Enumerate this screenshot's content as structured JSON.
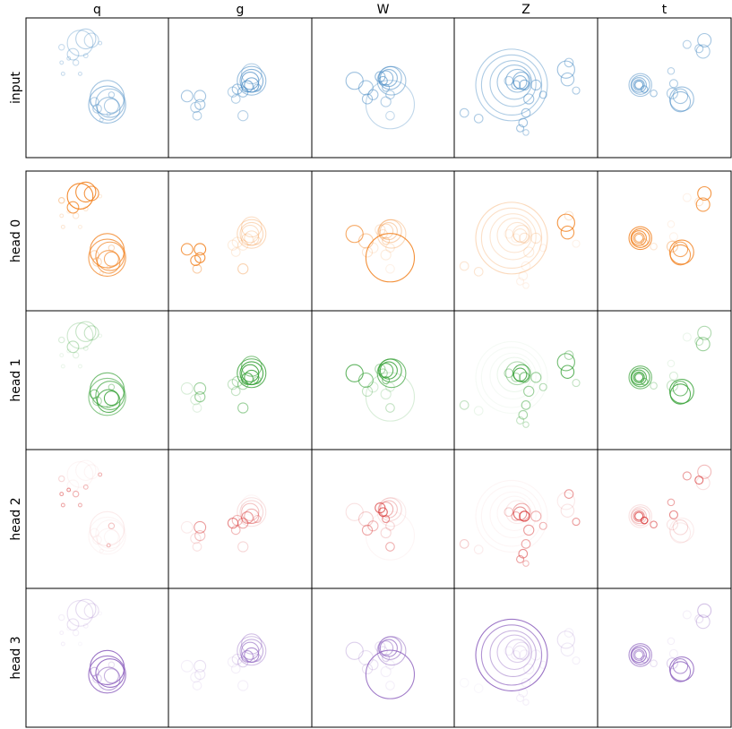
{
  "chart_data": {
    "type": "scatter",
    "columns": [
      "q",
      "g",
      "W",
      "Z",
      "t"
    ],
    "rows": [
      "input",
      "head 0",
      "head 1",
      "head 2",
      "head 3"
    ],
    "row_colors": {
      "input": "#4a8cc4",
      "head 0": "#f28424",
      "head 1": "#3ba33b",
      "head 2": "#d93b3b",
      "head 3": "#9065c0"
    },
    "panels": {
      "q": [
        {
          "x": 0.38,
          "y": 0.82,
          "r": 0.09,
          "w": [
            0.35,
            0.95,
            0.25,
            0.05,
            0.2
          ]
        },
        {
          "x": 0.42,
          "y": 0.85,
          "r": 0.07,
          "w": [
            0.4,
            0.9,
            0.3,
            0.05,
            0.25
          ]
        },
        {
          "x": 0.46,
          "y": 0.84,
          "r": 0.05,
          "w": [
            0.35,
            0.85,
            0.3,
            0.05,
            0.2
          ]
        },
        {
          "x": 0.33,
          "y": 0.74,
          "r": 0.04,
          "w": [
            0.35,
            0.8,
            0.35,
            0.05,
            0.2
          ]
        },
        {
          "x": 0.25,
          "y": 0.79,
          "r": 0.02,
          "w": [
            0.3,
            0.4,
            0.2,
            0.2,
            0.1
          ]
        },
        {
          "x": 0.35,
          "y": 0.68,
          "r": 0.02,
          "w": [
            0.3,
            0.2,
            0.15,
            0.4,
            0.1
          ]
        },
        {
          "x": 0.42,
          "y": 0.73,
          "r": 0.015,
          "w": [
            0.3,
            0.2,
            0.15,
            0.35,
            0.1
          ]
        },
        {
          "x": 0.25,
          "y": 0.68,
          "r": 0.012,
          "w": [
            0.3,
            0.2,
            0.1,
            0.5,
            0.1
          ]
        },
        {
          "x": 0.26,
          "y": 0.6,
          "r": 0.012,
          "w": [
            0.3,
            0.2,
            0.1,
            0.45,
            0.1
          ]
        },
        {
          "x": 0.3,
          "y": 0.71,
          "r": 0.012,
          "w": [
            0.3,
            0.15,
            0.1,
            0.55,
            0.05
          ]
        },
        {
          "x": 0.38,
          "y": 0.6,
          "r": 0.012,
          "w": [
            0.3,
            0.15,
            0.1,
            0.4,
            0.05
          ]
        },
        {
          "x": 0.52,
          "y": 0.82,
          "r": 0.012,
          "w": [
            0.3,
            0.15,
            0.1,
            0.4,
            0.05
          ]
        },
        {
          "x": 0.57,
          "y": 0.43,
          "r": 0.12,
          "w": [
            0.5,
            0.8,
            0.7,
            0.1,
            0.9
          ]
        },
        {
          "x": 0.57,
          "y": 0.38,
          "r": 0.13,
          "w": [
            0.55,
            0.75,
            0.6,
            0.05,
            0.85
          ]
        },
        {
          "x": 0.59,
          "y": 0.39,
          "r": 0.1,
          "w": [
            0.5,
            0.75,
            0.7,
            0.05,
            0.9
          ]
        },
        {
          "x": 0.58,
          "y": 0.35,
          "r": 0.08,
          "w": [
            0.5,
            0.7,
            0.8,
            0.05,
            0.6
          ]
        },
        {
          "x": 0.6,
          "y": 0.37,
          "r": 0.05,
          "w": [
            0.45,
            0.65,
            0.85,
            0.05,
            0.5
          ]
        },
        {
          "x": 0.48,
          "y": 0.4,
          "r": 0.03,
          "w": [
            0.4,
            0.3,
            0.6,
            0.05,
            0.4
          ]
        },
        {
          "x": 0.5,
          "y": 0.35,
          "r": 0.03,
          "w": [
            0.4,
            0.3,
            0.4,
            0.05,
            0.3
          ]
        },
        {
          "x": 0.6,
          "y": 0.45,
          "r": 0.02,
          "w": [
            0.4,
            0.3,
            0.4,
            0.3,
            0.2
          ]
        },
        {
          "x": 0.53,
          "y": 0.27,
          "r": 0.012,
          "w": [
            0.3,
            0.2,
            0.1,
            0.05,
            0.1
          ]
        },
        {
          "x": 0.58,
          "y": 0.31,
          "r": 0.012,
          "w": [
            0.3,
            0.2,
            0.2,
            0.35,
            0.1
          ]
        }
      ],
      "g": [
        {
          "x": 0.58,
          "y": 0.55,
          "r": 0.1,
          "w": [
            0.55,
            0.3,
            0.8,
            0.15,
            0.4
          ]
        },
        {
          "x": 0.58,
          "y": 0.55,
          "r": 0.08,
          "w": [
            0.65,
            0.3,
            0.9,
            0.2,
            0.5
          ]
        },
        {
          "x": 0.57,
          "y": 0.55,
          "r": 0.06,
          "w": [
            0.7,
            0.25,
            0.9,
            0.3,
            0.6
          ]
        },
        {
          "x": 0.58,
          "y": 0.52,
          "r": 0.05,
          "w": [
            0.75,
            0.25,
            0.85,
            0.4,
            0.7
          ]
        },
        {
          "x": 0.55,
          "y": 0.51,
          "r": 0.04,
          "w": [
            0.7,
            0.2,
            0.8,
            0.5,
            0.6
          ]
        },
        {
          "x": 0.52,
          "y": 0.47,
          "r": 0.035,
          "w": [
            0.5,
            0.15,
            0.4,
            0.45,
            0.3
          ]
        },
        {
          "x": 0.48,
          "y": 0.49,
          "r": 0.035,
          "w": [
            0.5,
            0.15,
            0.35,
            0.35,
            0.2
          ]
        },
        {
          "x": 0.45,
          "y": 0.47,
          "r": 0.035,
          "w": [
            0.4,
            0.15,
            0.3,
            0.6,
            0.1
          ]
        },
        {
          "x": 0.47,
          "y": 0.42,
          "r": 0.03,
          "w": [
            0.4,
            0.15,
            0.3,
            0.35,
            0.1
          ]
        },
        {
          "x": 0.62,
          "y": 0.5,
          "r": 0.025,
          "w": [
            0.5,
            0.2,
            0.4,
            0.3,
            0.3
          ]
        },
        {
          "x": 0.13,
          "y": 0.44,
          "r": 0.04,
          "w": [
            0.5,
            0.8,
            0.2,
            0.1,
            0.1
          ]
        },
        {
          "x": 0.22,
          "y": 0.44,
          "r": 0.04,
          "w": [
            0.5,
            0.9,
            0.5,
            0.5,
            0.2
          ]
        },
        {
          "x": 0.22,
          "y": 0.38,
          "r": 0.035,
          "w": [
            0.5,
            0.85,
            0.5,
            0.3,
            0.15
          ]
        },
        {
          "x": 0.19,
          "y": 0.36,
          "r": 0.035,
          "w": [
            0.4,
            0.8,
            0.2,
            0.15,
            0.1
          ]
        },
        {
          "x": 0.2,
          "y": 0.3,
          "r": 0.03,
          "w": [
            0.4,
            0.4,
            0.15,
            0.15,
            0.1
          ]
        },
        {
          "x": 0.52,
          "y": 0.3,
          "r": 0.035,
          "w": [
            0.4,
            0.35,
            0.5,
            0.2,
            0.1
          ]
        },
        {
          "x": 0.58,
          "y": 0.6,
          "r": 0.07,
          "w": [
            0.4,
            0.25,
            0.6,
            0.05,
            0.4
          ]
        }
      ],
      "W": [
        {
          "x": 0.55,
          "y": 0.38,
          "r": 0.17,
          "w": [
            0.35,
            0.9,
            0.2,
            0.05,
            0.85
          ]
        },
        {
          "x": 0.56,
          "y": 0.55,
          "r": 0.1,
          "w": [
            0.5,
            0.3,
            0.7,
            0.1,
            0.5
          ]
        },
        {
          "x": 0.55,
          "y": 0.57,
          "r": 0.08,
          "w": [
            0.55,
            0.35,
            0.8,
            0.2,
            0.6
          ]
        },
        {
          "x": 0.54,
          "y": 0.57,
          "r": 0.06,
          "w": [
            0.6,
            0.35,
            0.85,
            0.3,
            0.7
          ]
        },
        {
          "x": 0.52,
          "y": 0.57,
          "r": 0.05,
          "w": [
            0.6,
            0.3,
            0.8,
            0.4,
            0.5
          ]
        },
        {
          "x": 0.48,
          "y": 0.58,
          "r": 0.035,
          "w": [
            0.55,
            0.2,
            0.4,
            0.7,
            0.2
          ]
        },
        {
          "x": 0.5,
          "y": 0.55,
          "r": 0.03,
          "w": [
            0.6,
            0.2,
            0.4,
            0.75,
            0.2
          ]
        },
        {
          "x": 0.3,
          "y": 0.55,
          "r": 0.06,
          "w": [
            0.55,
            0.7,
            0.8,
            0.15,
            0.3
          ]
        },
        {
          "x": 0.38,
          "y": 0.5,
          "r": 0.05,
          "w": [
            0.5,
            0.4,
            0.6,
            0.25,
            0.2
          ]
        },
        {
          "x": 0.39,
          "y": 0.42,
          "r": 0.035,
          "w": [
            0.5,
            0.2,
            0.3,
            0.45,
            0.2
          ]
        },
        {
          "x": 0.43,
          "y": 0.45,
          "r": 0.035,
          "w": [
            0.5,
            0.15,
            0.2,
            0.35,
            0.2
          ]
        },
        {
          "x": 0.55,
          "y": 0.45,
          "r": 0.03,
          "w": [
            0.4,
            0.15,
            0.2,
            0.2,
            0.1
          ]
        },
        {
          "x": 0.52,
          "y": 0.4,
          "r": 0.035,
          "w": [
            0.4,
            0.15,
            0.2,
            0.2,
            0.1
          ]
        },
        {
          "x": 0.55,
          "y": 0.3,
          "r": 0.03,
          "w": [
            0.3,
            0.1,
            0.3,
            0.4,
            0.1
          ]
        },
        {
          "x": 0.52,
          "y": 0.5,
          "r": 0.025,
          "w": [
            0.5,
            0.3,
            0.6,
            0.55,
            0.3
          ]
        }
      ],
      "Z": [
        {
          "x": 0.4,
          "y": 0.52,
          "r": 0.25,
          "w": [
            0.45,
            0.3,
            0.05,
            0.05,
            0.9
          ]
        },
        {
          "x": 0.4,
          "y": 0.52,
          "r": 0.21,
          "w": [
            0.45,
            0.25,
            0.05,
            0.05,
            0.7
          ]
        },
        {
          "x": 0.41,
          "y": 0.53,
          "r": 0.16,
          "w": [
            0.45,
            0.2,
            0.05,
            0.05,
            0.5
          ]
        },
        {
          "x": 0.42,
          "y": 0.54,
          "r": 0.12,
          "w": [
            0.5,
            0.2,
            0.1,
            0.05,
            0.4
          ]
        },
        {
          "x": 0.44,
          "y": 0.55,
          "r": 0.08,
          "w": [
            0.55,
            0.2,
            0.4,
            0.1,
            0.3
          ]
        },
        {
          "x": 0.47,
          "y": 0.55,
          "r": 0.06,
          "w": [
            0.6,
            0.2,
            0.8,
            0.4,
            0.2
          ]
        },
        {
          "x": 0.46,
          "y": 0.54,
          "r": 0.045,
          "w": [
            0.6,
            0.2,
            0.85,
            0.55,
            0.2
          ]
        },
        {
          "x": 0.49,
          "y": 0.52,
          "r": 0.035,
          "w": [
            0.6,
            0.2,
            0.6,
            0.9,
            0.1
          ]
        },
        {
          "x": 0.43,
          "y": 0.52,
          "r": 0.03,
          "w": [
            0.5,
            0.1,
            0.4,
            0.4,
            0.1
          ]
        },
        {
          "x": 0.38,
          "y": 0.55,
          "r": 0.03,
          "w": [
            0.4,
            0.1,
            0.4,
            0.25,
            0.1
          ]
        },
        {
          "x": 0.57,
          "y": 0.52,
          "r": 0.035,
          "w": [
            0.5,
            0.2,
            0.5,
            0.4,
            0.1
          ]
        },
        {
          "x": 0.62,
          "y": 0.45,
          "r": 0.025,
          "w": [
            0.5,
            0.1,
            0.4,
            0.4,
            0.1
          ]
        },
        {
          "x": 0.52,
          "y": 0.42,
          "r": 0.035,
          "w": [
            0.5,
            0.15,
            0.5,
            0.5,
            0.1
          ]
        },
        {
          "x": 0.78,
          "y": 0.63,
          "r": 0.06,
          "w": [
            0.55,
            0.85,
            0.7,
            0.1,
            0.2
          ]
        },
        {
          "x": 0.79,
          "y": 0.56,
          "r": 0.045,
          "w": [
            0.5,
            0.8,
            0.8,
            0.15,
            0.15
          ]
        },
        {
          "x": 0.8,
          "y": 0.68,
          "r": 0.03,
          "w": [
            0.45,
            0.2,
            0.4,
            0.5,
            0.1
          ]
        },
        {
          "x": 0.85,
          "y": 0.48,
          "r": 0.025,
          "w": [
            0.45,
            0.1,
            0.3,
            0.5,
            0.1
          ]
        },
        {
          "x": 0.5,
          "y": 0.32,
          "r": 0.03,
          "w": [
            0.5,
            0.1,
            0.5,
            0.45,
            0.1
          ]
        },
        {
          "x": 0.48,
          "y": 0.25,
          "r": 0.03,
          "w": [
            0.5,
            0.1,
            0.45,
            0.55,
            0.1
          ]
        },
        {
          "x": 0.46,
          "y": 0.21,
          "r": 0.025,
          "w": [
            0.5,
            0.1,
            0.3,
            0.5,
            0.1
          ]
        },
        {
          "x": 0.5,
          "y": 0.18,
          "r": 0.02,
          "w": [
            0.4,
            0.1,
            0.3,
            0.35,
            0.1
          ]
        },
        {
          "x": 0.07,
          "y": 0.32,
          "r": 0.03,
          "w": [
            0.45,
            0.2,
            0.3,
            0.25,
            0.05
          ]
        },
        {
          "x": 0.17,
          "y": 0.28,
          "r": 0.03,
          "w": [
            0.45,
            0.2,
            0.1,
            0.1,
            0.05
          ]
        }
      ],
      "t": [
        {
          "x": 0.32,
          "y": 0.52,
          "r": 0.085,
          "w": [
            0.5,
            0.85,
            0.7,
            0.15,
            0.7
          ]
        },
        {
          "x": 0.32,
          "y": 0.52,
          "r": 0.07,
          "w": [
            0.55,
            0.9,
            0.8,
            0.2,
            0.8
          ]
        },
        {
          "x": 0.31,
          "y": 0.52,
          "r": 0.055,
          "w": [
            0.6,
            0.85,
            0.85,
            0.3,
            0.85
          ]
        },
        {
          "x": 0.31,
          "y": 0.52,
          "r": 0.04,
          "w": [
            0.7,
            0.75,
            0.9,
            0.55,
            0.7
          ]
        },
        {
          "x": 0.31,
          "y": 0.52,
          "r": 0.03,
          "w": [
            0.8,
            0.65,
            0.9,
            0.8,
            0.6
          ]
        },
        {
          "x": 0.35,
          "y": 0.49,
          "r": 0.025,
          "w": [
            0.6,
            0.4,
            0.6,
            0.9,
            0.4
          ]
        },
        {
          "x": 0.42,
          "y": 0.46,
          "r": 0.025,
          "w": [
            0.5,
            0.2,
            0.3,
            0.6,
            0.2
          ]
        },
        {
          "x": 0.63,
          "y": 0.42,
          "r": 0.09,
          "w": [
            0.55,
            0.85,
            0.85,
            0.1,
            0.85
          ]
        },
        {
          "x": 0.62,
          "y": 0.4,
          "r": 0.075,
          "w": [
            0.55,
            0.8,
            0.85,
            0.1,
            0.8
          ]
        },
        {
          "x": 0.62,
          "y": 0.44,
          "r": 0.055,
          "w": [
            0.5,
            0.7,
            0.7,
            0.2,
            0.7
          ]
        },
        {
          "x": 0.56,
          "y": 0.46,
          "r": 0.04,
          "w": [
            0.45,
            0.4,
            0.3,
            0.15,
            0.3
          ]
        },
        {
          "x": 0.57,
          "y": 0.53,
          "r": 0.03,
          "w": [
            0.45,
            0.1,
            0.2,
            0.6,
            0.1
          ]
        },
        {
          "x": 0.8,
          "y": 0.84,
          "r": 0.05,
          "w": [
            0.5,
            0.85,
            0.4,
            0.35,
            0.4
          ]
        },
        {
          "x": 0.79,
          "y": 0.76,
          "r": 0.05,
          "w": [
            0.45,
            0.8,
            0.5,
            0.15,
            0.3
          ]
        },
        {
          "x": 0.76,
          "y": 0.78,
          "r": 0.03,
          "w": [
            0.45,
            0.2,
            0.3,
            0.7,
            0.2
          ]
        },
        {
          "x": 0.67,
          "y": 0.81,
          "r": 0.03,
          "w": [
            0.4,
            0.1,
            0.1,
            0.5,
            0.1
          ]
        },
        {
          "x": 0.55,
          "y": 0.62,
          "r": 0.025,
          "w": [
            0.4,
            0.1,
            0.1,
            0.45,
            0.1
          ]
        }
      ]
    }
  }
}
